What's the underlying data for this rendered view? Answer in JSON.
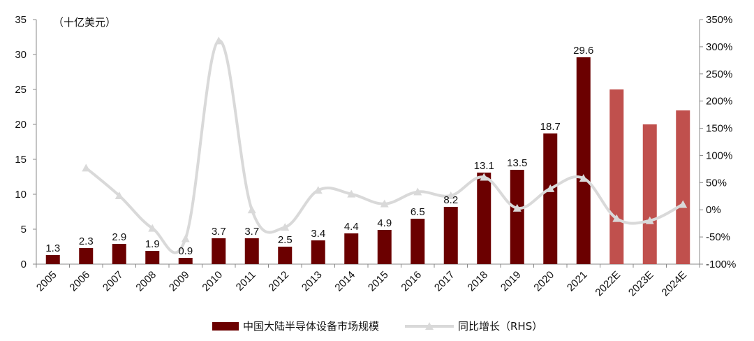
{
  "chart_data": {
    "type": "bar",
    "unit_label": "（十亿美元）",
    "categories": [
      "2005",
      "2006",
      "2007",
      "2008",
      "2009",
      "2010",
      "2011",
      "2012",
      "2013",
      "2014",
      "2015",
      "2016",
      "2017",
      "2018",
      "2019",
      "2020",
      "2021",
      "2022E",
      "2023E",
      "2024E"
    ],
    "series": [
      {
        "name": "中国大陆半导体设备市场规模",
        "type": "bar",
        "axis": "left",
        "values": [
          1.3,
          2.3,
          2.9,
          1.9,
          0.9,
          3.7,
          3.7,
          2.5,
          3.4,
          4.4,
          4.9,
          6.5,
          8.2,
          13.1,
          13.5,
          18.7,
          29.6,
          25.0,
          20.0,
          22.0
        ],
        "data_labels": [
          "1.3",
          "2.3",
          "2.9",
          "1.9",
          "0.9",
          "3.7",
          "3.7",
          "2.5",
          "3.4",
          "4.4",
          "4.9",
          "6.5",
          "8.2",
          "13.1",
          "13.5",
          "18.7",
          "29.6",
          null,
          null,
          null
        ]
      },
      {
        "name": "同比增长（RHS）",
        "type": "line",
        "axis": "right",
        "values": [
          null,
          77,
          26,
          -34,
          -53,
          311,
          0,
          -32,
          36,
          29,
          11,
          33,
          26,
          60,
          3,
          39,
          58,
          -16,
          -20,
          10
        ]
      }
    ],
    "y_left": {
      "min": 0,
      "max": 35,
      "step": 5,
      "ticks": [
        "0",
        "5",
        "10",
        "15",
        "20",
        "25",
        "30",
        "35"
      ]
    },
    "y_right": {
      "min": -100,
      "max": 350,
      "step": 50,
      "ticks": [
        "-100%",
        "-50%",
        "0%",
        "50%",
        "100%",
        "150%",
        "200%",
        "250%",
        "300%",
        "350%"
      ]
    },
    "grid": false,
    "legend_position": "bottom",
    "colors": {
      "bar_actual": "#6B0000",
      "bar_estimate": "#C0504D",
      "line": "#D9D9D9",
      "axis": "#888888"
    }
  }
}
